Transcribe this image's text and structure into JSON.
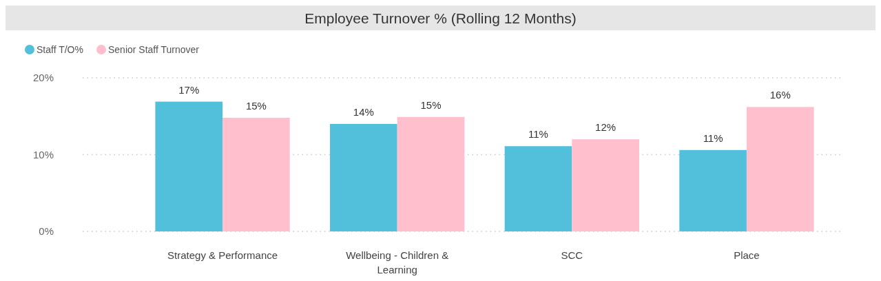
{
  "chart_data": {
    "type": "bar",
    "title": "Employee Turnover % (Rolling 12 Months)",
    "categories": [
      "Strategy & Performance",
      "Wellbeing - Children & Learning",
      "SCC",
      "Place"
    ],
    "series": [
      {
        "name": "Staff T/O%",
        "color": "#52c0da",
        "values": [
          16.9,
          14.0,
          11.1,
          10.6
        ],
        "value_labels": [
          "17%",
          "14%",
          "11%",
          "11%"
        ]
      },
      {
        "name": "Senior Staff Turnover",
        "color": "#ffbfcc",
        "values": [
          14.8,
          14.9,
          12.0,
          16.2
        ],
        "value_labels": [
          "15%",
          "15%",
          "12%",
          "16%"
        ]
      }
    ],
    "ylim": [
      0,
      20
    ],
    "yticks": [
      {
        "value": 0,
        "label": "0%"
      },
      {
        "value": 10,
        "label": "10%"
      },
      {
        "value": 20,
        "label": "20%"
      }
    ],
    "grid": "y",
    "legend": "top left"
  }
}
